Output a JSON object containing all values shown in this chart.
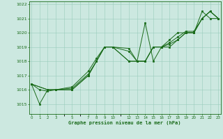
{
  "title": "Graphe pression niveau de la mer (hPa)",
  "bg_color": "#cce8e0",
  "grid_color": "#99ccbb",
  "line_color": "#1a6b1a",
  "ylim": [
    1014.3,
    1022.2
  ],
  "yticks": [
    1015,
    1016,
    1017,
    1018,
    1019,
    1020,
    1021,
    1022
  ],
  "xlim": [
    -0.3,
    23.3
  ],
  "xtick_positions": [
    0,
    1,
    2,
    3,
    5,
    7,
    8,
    9,
    10,
    12,
    13,
    14,
    15,
    16,
    17,
    18,
    19,
    20,
    21,
    22,
    23
  ],
  "xtick_labels": [
    "0",
    "1",
    "2",
    "3",
    "5",
    "7",
    "8",
    "9",
    "10",
    "12",
    "13",
    "14",
    "15",
    "16",
    "17",
    "18",
    "19",
    "20",
    "21",
    "22",
    "23"
  ],
  "line1_x": [
    0,
    1,
    2,
    3,
    5,
    7,
    8,
    9,
    10,
    12,
    13,
    14,
    15,
    16,
    17,
    18,
    19,
    20,
    21,
    22,
    23
  ],
  "line1_y": [
    1016.4,
    1016.0,
    1015.9,
    1016.0,
    1016.0,
    1017.0,
    1018.0,
    1019.0,
    1019.0,
    1018.0,
    1018.0,
    1020.7,
    1018.0,
    1019.0,
    1019.0,
    1019.5,
    1020.0,
    1020.0,
    1021.5,
    1021.0,
    1021.0
  ],
  "line2_x": [
    0,
    1,
    2,
    3,
    5,
    7,
    8,
    9,
    10,
    12,
    13,
    14,
    15,
    16,
    17,
    18,
    19,
    20,
    21,
    22,
    23
  ],
  "line2_y": [
    1016.4,
    1015.0,
    1016.0,
    1016.0,
    1016.0,
    1017.0,
    1018.0,
    1019.0,
    1019.0,
    1018.0,
    1018.0,
    1018.0,
    1019.0,
    1019.0,
    1019.5,
    1020.0,
    1020.0,
    1020.0,
    1021.0,
    1021.5,
    1021.0
  ],
  "line3_x": [
    0,
    2,
    3,
    5,
    7,
    8,
    9,
    10,
    12,
    13,
    14,
    15,
    16,
    17,
    18,
    19,
    20,
    21,
    22,
    23
  ],
  "line3_y": [
    1016.4,
    1016.0,
    1016.0,
    1016.1,
    1017.1,
    1018.0,
    1019.0,
    1019.0,
    1018.9,
    1018.0,
    1018.0,
    1019.0,
    1019.0,
    1019.2,
    1019.5,
    1020.0,
    1020.0,
    1021.0,
    1021.5,
    1021.0
  ],
  "line4_x": [
    0,
    2,
    3,
    5,
    7,
    8,
    9,
    10,
    12,
    13,
    14,
    15,
    16,
    17,
    18,
    19,
    20,
    21,
    22,
    23
  ],
  "line4_y": [
    1016.4,
    1016.0,
    1016.0,
    1016.2,
    1017.3,
    1018.2,
    1019.0,
    1019.0,
    1018.7,
    1018.0,
    1018.0,
    1019.0,
    1019.0,
    1019.3,
    1019.7,
    1020.1,
    1020.1,
    1021.0,
    1021.5,
    1021.0
  ]
}
